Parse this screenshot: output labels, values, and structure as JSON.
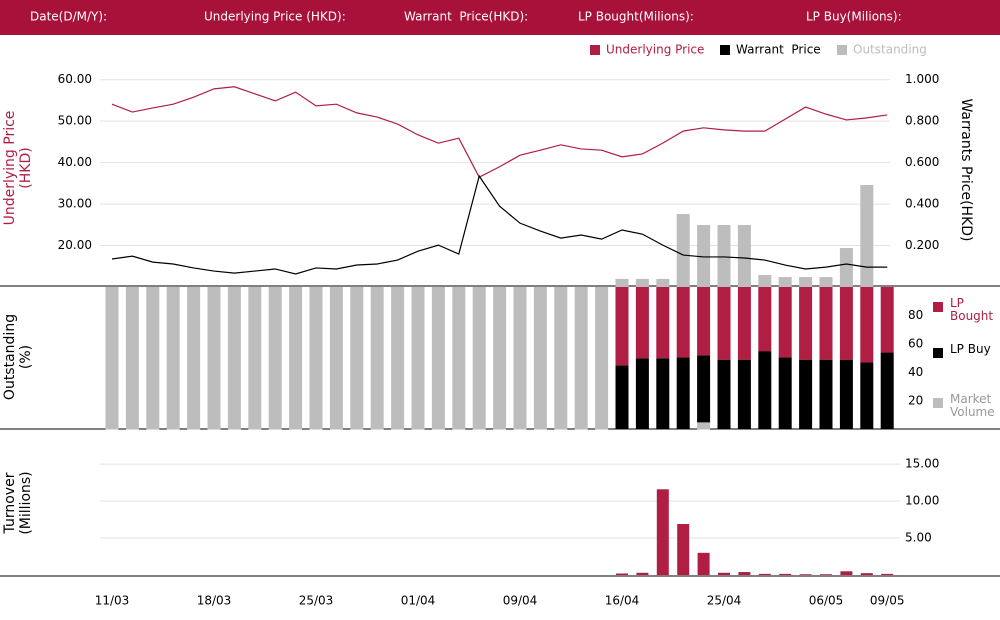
{
  "header": {
    "fields": [
      "Date(D/M/Y):",
      "Underlying Price (HKD):",
      "Warrant  Price(HKD):",
      "LP Bought(Milions):",
      "LP Buy(Milions):"
    ]
  },
  "chart_data": [
    {
      "type": "line",
      "y_label": "Underlying Price (HKD)",
      "y2_label": "Warrants  Price(HKD)",
      "series": [
        {
          "name": "Underlying Price",
          "color": "#b01e44",
          "axis": "y",
          "values": [
            54.1,
            52.2,
            53.2,
            54.1,
            55.8,
            57.8,
            58.3,
            56.6,
            54.9,
            57.0,
            53.7,
            54.1,
            52.0,
            51.0,
            49.3,
            46.7,
            44.7,
            45.9,
            36.5,
            39.0,
            41.8,
            43.0,
            44.3,
            43.3,
            43.0,
            41.4,
            42.1,
            44.7,
            47.6,
            48.4,
            47.9,
            47.6,
            47.6,
            50.5,
            53.4,
            51.7,
            50.3,
            50.8,
            51.5
          ]
        },
        {
          "name": "Warrant  Price",
          "color": "#000000",
          "axis": "y2",
          "values": [
            0.135,
            0.149,
            0.12,
            0.111,
            0.092,
            0.077,
            0.067,
            0.077,
            0.087,
            0.063,
            0.092,
            0.087,
            0.106,
            0.111,
            0.13,
            0.173,
            0.202,
            0.159,
            0.535,
            0.39,
            0.308,
            0.27,
            0.236,
            0.251,
            0.231,
            0.275,
            0.255,
            0.202,
            0.154,
            0.145,
            0.145,
            0.14,
            0.13,
            0.106,
            0.087,
            0.096,
            0.111,
            0.096,
            0.096
          ]
        },
        {
          "name": "Outstanding",
          "color": "#bdbdbd",
          "axis": "y2",
          "type": "bar",
          "values": [
            null,
            null,
            null,
            null,
            null,
            null,
            null,
            null,
            null,
            null,
            null,
            null,
            null,
            null,
            null,
            null,
            null,
            null,
            null,
            null,
            null,
            null,
            null,
            null,
            null,
            0.039,
            0.039,
            0.039,
            0.352,
            0.299,
            0.299,
            0.299,
            0.058,
            0.048,
            0.048,
            0.048,
            0.188,
            0.492,
            null
          ]
        }
      ],
      "ylim": [
        10,
        65
      ],
      "yticks": [
        {
          "value": 60,
          "label": "60.00"
        },
        {
          "value": 50,
          "label": "50.00"
        },
        {
          "value": 40,
          "label": "40.00"
        },
        {
          "value": 30,
          "label": "30.00"
        },
        {
          "value": 20,
          "label": "20.00"
        }
      ],
      "y2lim": [
        0,
        1.1
      ],
      "y2ticks": [
        {
          "value": 1,
          "label": "1.000"
        },
        {
          "value": 0.8,
          "label": "0.800"
        },
        {
          "value": 0.6,
          "label": "0.600"
        },
        {
          "value": 0.4,
          "label": "0.400"
        },
        {
          "value": 0.2,
          "label": "0.200"
        }
      ],
      "grid": true
    },
    {
      "type": "stacked_bar",
      "y_label": "Outstanding (%)",
      "series": [
        {
          "name": "LP Bought",
          "color": "#b01e44",
          "values": [
            null,
            null,
            null,
            null,
            null,
            null,
            null,
            null,
            null,
            null,
            null,
            null,
            null,
            null,
            null,
            null,
            null,
            null,
            null,
            null,
            null,
            null,
            null,
            null,
            null,
            55,
            50,
            50,
            49.5,
            48,
            51,
            51,
            45,
            49.5,
            51,
            51,
            51,
            53,
            46
          ]
        },
        {
          "name": "LP Buy",
          "color": "#000000",
          "values": [
            null,
            null,
            null,
            null,
            null,
            null,
            null,
            null,
            null,
            null,
            null,
            null,
            null,
            null,
            null,
            null,
            null,
            null,
            null,
            null,
            null,
            null,
            null,
            null,
            null,
            45,
            50,
            50,
            50.5,
            47,
            49,
            49,
            55,
            50.5,
            49,
            49,
            49,
            47,
            54
          ]
        },
        {
          "name": "Market Volume",
          "color": "#bdbdbd",
          "values": [
            100,
            100,
            100,
            100,
            100,
            100,
            100,
            100,
            100,
            100,
            100,
            100,
            100,
            100,
            100,
            100,
            100,
            100,
            100,
            100,
            100,
            100,
            100,
            100,
            100,
            null,
            null,
            null,
            null,
            5,
            null,
            null,
            null,
            null,
            null,
            null,
            null,
            null,
            null
          ]
        }
      ],
      "ylim": [
        0,
        100
      ],
      "yticks": [
        80,
        60,
        40,
        20
      ]
    },
    {
      "type": "bar",
      "y_label": "Turnover (Millions)",
      "categories": [
        "11/03",
        null,
        null,
        null,
        null,
        "18/03",
        null,
        null,
        null,
        null,
        "25/03",
        null,
        null,
        null,
        null,
        "01/04",
        null,
        null,
        null,
        null,
        "09/04",
        null,
        null,
        null,
        null,
        "16/04",
        null,
        null,
        null,
        null,
        "25/04",
        null,
        null,
        null,
        null,
        "06/05",
        null,
        null,
        "09/05"
      ],
      "color": "#b01e44",
      "values": [
        null,
        null,
        null,
        null,
        null,
        null,
        null,
        null,
        null,
        null,
        null,
        null,
        null,
        null,
        null,
        null,
        null,
        null,
        null,
        null,
        null,
        null,
        null,
        null,
        null,
        0.2,
        0.3,
        11.6,
        6.9,
        3.0,
        0.3,
        0.4,
        0.15,
        0.15,
        0.1,
        0.1,
        0.5,
        0.25,
        0.15
      ],
      "ylim": [
        0,
        18
      ],
      "yticks": [
        {
          "value": 15,
          "label": "15.00"
        },
        {
          "value": 10,
          "label": "10.00"
        },
        {
          "value": 5,
          "label": "5.00"
        }
      ],
      "grid": true
    }
  ]
}
